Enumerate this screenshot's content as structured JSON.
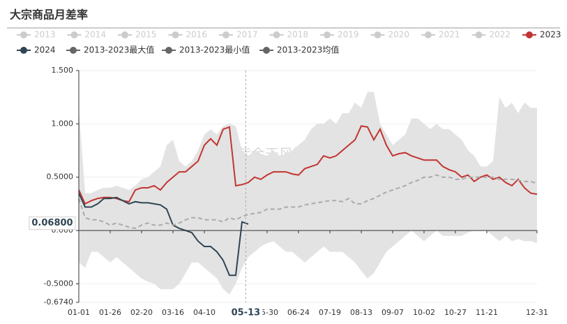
{
  "chart_data": {
    "type": "line",
    "title": "大宗商品月差率",
    "watermark": "紫金天风期货",
    "legend_inactive": [
      "2013",
      "2014",
      "2015",
      "2016",
      "2017",
      "2018",
      "2019",
      "2020",
      "2021",
      "2022"
    ],
    "legend_inactive_color": "#cccccc",
    "x": [
      0,
      5,
      10,
      15,
      20,
      25,
      30,
      35,
      40,
      45,
      50,
      55,
      60,
      65,
      70,
      75,
      80,
      85,
      90,
      95,
      100,
      105,
      110,
      115,
      120,
      125,
      130,
      135,
      140,
      145,
      150,
      155,
      160,
      165,
      170,
      175,
      180,
      185,
      190,
      195,
      200,
      205,
      210,
      215,
      220,
      225,
      230,
      235,
      240,
      245,
      250,
      255,
      260,
      265,
      270,
      275,
      280,
      285,
      290,
      295,
      300,
      305,
      310,
      315,
      320,
      325,
      330,
      335,
      340,
      345,
      350,
      355,
      360,
      365
    ],
    "series": [
      {
        "name": "2023",
        "color": "#c23531",
        "style": "line",
        "values": [
          0.38,
          0.25,
          0.28,
          0.3,
          0.31,
          0.31,
          0.3,
          0.28,
          0.27,
          0.38,
          0.4,
          0.4,
          0.42,
          0.38,
          0.45,
          0.5,
          0.55,
          0.55,
          0.6,
          0.65,
          0.8,
          0.86,
          0.8,
          0.95,
          0.97,
          0.42,
          0.43,
          0.45,
          0.5,
          0.48,
          0.52,
          0.55,
          0.55,
          0.55,
          0.53,
          0.52,
          0.58,
          0.6,
          0.62,
          0.7,
          0.68,
          0.7,
          0.75,
          0.8,
          0.85,
          0.98,
          0.97,
          0.85,
          0.95,
          0.8,
          0.7,
          0.72,
          0.73,
          0.7,
          0.68,
          0.66,
          0.66,
          0.66,
          0.6,
          0.57,
          0.55,
          0.5,
          0.52,
          0.46,
          0.5,
          0.52,
          0.48,
          0.5,
          0.45,
          0.42,
          0.48,
          0.4,
          0.35,
          0.34
        ]
      },
      {
        "name": "2024",
        "color": "#2f4554",
        "style": "line",
        "values": [
          0.35,
          0.22,
          0.22,
          0.25,
          0.3,
          0.3,
          0.31,
          0.28,
          0.25,
          0.27,
          0.26,
          0.26,
          0.25,
          0.24,
          0.2,
          0.05,
          0.02,
          0.0,
          -0.02,
          -0.1,
          -0.15,
          -0.15,
          -0.2,
          -0.28,
          -0.42,
          -0.42,
          0.08,
          0.06,
          null,
          null,
          null,
          null,
          null,
          null,
          null,
          null,
          null,
          null,
          null,
          null,
          null,
          null,
          null,
          null,
          null,
          null,
          null,
          null,
          null,
          null,
          null,
          null,
          null,
          null,
          null,
          null,
          null,
          null,
          null,
          null,
          null,
          null,
          null,
          null,
          null,
          null,
          null,
          null,
          null,
          null,
          null,
          null,
          null,
          null
        ]
      },
      {
        "name": "2013-2023最大值",
        "color": "#666666",
        "fill": "#e3e3e3",
        "style": "area",
        "values": [
          1.15,
          0.35,
          0.35,
          0.38,
          0.4,
          0.4,
          0.42,
          0.4,
          0.38,
          0.42,
          0.48,
          0.5,
          0.55,
          0.6,
          0.8,
          0.85,
          0.65,
          0.6,
          0.65,
          0.75,
          0.9,
          0.95,
          0.9,
          0.98,
          1.0,
          0.98,
          0.75,
          0.7,
          0.75,
          0.72,
          0.7,
          0.75,
          0.7,
          0.72,
          0.75,
          0.8,
          0.85,
          0.95,
          1.0,
          1.0,
          1.05,
          1.0,
          1.1,
          1.1,
          1.2,
          1.15,
          1.3,
          1.3,
          1.0,
          0.9,
          0.8,
          0.85,
          0.9,
          1.05,
          1.05,
          1.0,
          0.95,
          1.0,
          0.95,
          0.95,
          0.9,
          0.85,
          0.75,
          0.7,
          0.6,
          0.6,
          0.65,
          1.25,
          1.15,
          1.2,
          1.1,
          1.2,
          1.15,
          1.15
        ]
      },
      {
        "name": "2013-2023最小值",
        "color": "#666666",
        "fill": "#e3e3e3",
        "style": "area",
        "values": [
          -0.3,
          -0.35,
          -0.2,
          -0.2,
          -0.25,
          -0.3,
          -0.25,
          -0.3,
          -0.35,
          -0.4,
          -0.45,
          -0.48,
          -0.5,
          -0.55,
          -0.55,
          -0.55,
          -0.5,
          -0.4,
          -0.3,
          -0.3,
          -0.35,
          -0.4,
          -0.45,
          -0.55,
          -0.6,
          -0.5,
          -0.35,
          -0.25,
          -0.2,
          -0.15,
          -0.12,
          -0.1,
          -0.15,
          -0.2,
          -0.2,
          -0.25,
          -0.3,
          -0.25,
          -0.2,
          -0.15,
          -0.2,
          -0.2,
          -0.2,
          -0.25,
          -0.3,
          -0.38,
          -0.45,
          -0.4,
          -0.3,
          -0.2,
          -0.15,
          -0.1,
          -0.05,
          0.0,
          -0.05,
          -0.1,
          -0.05,
          0.0,
          -0.05,
          -0.05,
          -0.05,
          -0.05,
          -0.02,
          0.0,
          0.0,
          0.0,
          -0.05,
          -0.1,
          -0.05,
          -0.1,
          -0.08,
          -0.1,
          -0.1,
          -0.12
        ]
      },
      {
        "name": "2013-2023均值",
        "color": "#666666",
        "line_color": "#aaaaaa",
        "style": "dashed",
        "values": [
          0.3,
          0.12,
          0.1,
          0.1,
          0.08,
          0.05,
          0.07,
          0.05,
          0.03,
          0.02,
          0.05,
          0.07,
          0.05,
          0.05,
          0.07,
          0.05,
          0.07,
          0.1,
          0.12,
          0.12,
          0.1,
          0.1,
          0.1,
          0.08,
          0.12,
          0.1,
          0.13,
          0.15,
          0.16,
          0.17,
          0.2,
          0.2,
          0.2,
          0.22,
          0.22,
          0.22,
          0.24,
          0.25,
          0.26,
          0.27,
          0.28,
          0.28,
          0.27,
          0.3,
          0.25,
          0.25,
          0.28,
          0.3,
          0.33,
          0.36,
          0.38,
          0.4,
          0.42,
          0.45,
          0.47,
          0.5,
          0.5,
          0.52,
          0.5,
          0.5,
          0.48,
          0.48,
          0.5,
          0.5,
          0.5,
          0.5,
          0.5,
          0.48,
          0.48,
          0.48,
          0.47,
          0.46,
          0.46,
          0.44
        ]
      }
    ],
    "xlim": [
      0,
      365
    ],
    "xticks": [
      {
        "value": 0,
        "label": "01-01"
      },
      {
        "value": 25,
        "label": "01-26"
      },
      {
        "value": 50,
        "label": "02-20"
      },
      {
        "value": 75,
        "label": "03-16"
      },
      {
        "value": 100,
        "label": "04-10"
      },
      {
        "value": 150,
        "label": "05-30"
      },
      {
        "value": 175,
        "label": "06-24"
      },
      {
        "value": 200,
        "label": "07-19"
      },
      {
        "value": 225,
        "label": "08-13"
      },
      {
        "value": 250,
        "label": "09-07"
      },
      {
        "value": 275,
        "label": "10-02"
      },
      {
        "value": 300,
        "label": "10-27"
      },
      {
        "value": 325,
        "label": "11-21"
      },
      {
        "value": 365,
        "label": "12-31"
      }
    ],
    "ylim": [
      -0.674,
      1.5
    ],
    "yticks": [
      {
        "value": -0.674,
        "label": "-0.6740"
      },
      {
        "value": -0.5,
        "label": "-0.5000"
      },
      {
        "value": 0,
        "label": "0.000"
      },
      {
        "value": 0.5,
        "label": "0.5000"
      },
      {
        "value": 1,
        "label": "1.000"
      },
      {
        "value": 1.5,
        "label": "1.500"
      }
    ],
    "grid": true,
    "pointer": {
      "x": 133,
      "x_label": "05-13",
      "y": 0.068,
      "y_label": "0.06800"
    }
  }
}
